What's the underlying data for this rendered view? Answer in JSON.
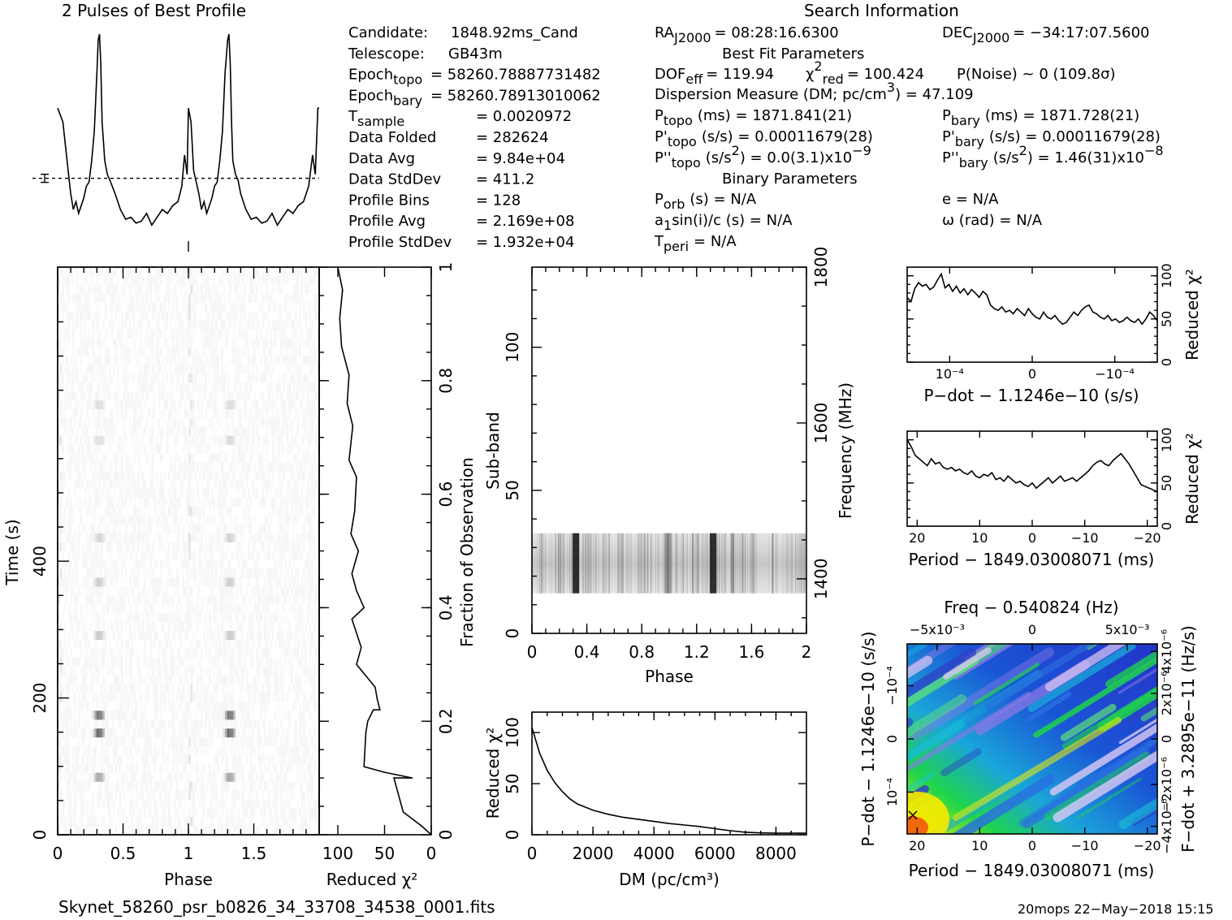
{
  "header": {
    "profile_title": "2 Pulses of Best Profile",
    "search_title": "Search Information",
    "best_fit_title": "Best Fit Parameters",
    "binary_title": "Binary Parameters"
  },
  "info_left": [
    {
      "label": "Candidate:",
      "sub": "",
      "value": "1848.92ms_Cand"
    },
    {
      "label": "Telescope:",
      "sub": "",
      "value": "GB43m"
    },
    {
      "label": "Epoch",
      "sub": "topo",
      "value": "= 58260.78887731482"
    },
    {
      "label": "Epoch",
      "sub": "bary",
      "value": "= 58260.78913010062"
    },
    {
      "label": "T",
      "sub": "sample",
      "value": "=   0.0020972"
    },
    {
      "label": "Data Folded",
      "sub": "",
      "value": "=   282624"
    },
    {
      "label": "Data Avg",
      "sub": "",
      "value": "=   9.84e+04"
    },
    {
      "label": "Data StdDev",
      "sub": "",
      "value": "=   411.2"
    },
    {
      "label": "Profile Bins",
      "sub": "",
      "value": "=   128"
    },
    {
      "label": "Profile Avg",
      "sub": "",
      "value": "=   2.169e+08"
    },
    {
      "label": "Profile StdDev",
      "sub": "",
      "value": "=   1.932e+04"
    }
  ],
  "search": {
    "ra": {
      "label": "RA",
      "sub": "J2000",
      "value": "= 08:28:16.6300"
    },
    "dec": {
      "label": "DEC",
      "sub": "J2000",
      "value": "= −34:17:07.5600"
    },
    "dof": {
      "label": "DOF",
      "sub": "eff",
      "value": "= 119.94"
    },
    "chi": {
      "label": "χ",
      "sup": "2",
      "sub": "red",
      "value": "= 100.424"
    },
    "pnoise": "P(Noise) ~ 0    (109.8σ)",
    "dm": {
      "label": "Dispersion Measure (DM; pc/cm",
      "sup": "3",
      "value": ") = 47.109"
    },
    "p_topo": {
      "label": "P",
      "sub": "topo",
      "value": "(ms)  =   1871.841(21)"
    },
    "p_bary": {
      "label": "P",
      "sub": "bary",
      "value": "(ms)  =   1871.728(21)"
    },
    "pd_topo": {
      "label": "P'",
      "sub": "topo",
      "value": "(s/s)  =   0.00011679(28)"
    },
    "pd_bary": {
      "label": "P'",
      "sub": "bary",
      "value": "(s/s)  =   0.00011679(28)"
    },
    "pdd_topo": {
      "label": "P''",
      "sub": "topo",
      "value": "(s/s",
      "sup": "2",
      "value2": ") = 0.0(3.1)x10",
      "exp": "−9"
    },
    "pdd_bary": {
      "label": "P''",
      "sub": "bary",
      "value": "(s/s",
      "sup": "2",
      "value2": ")  =   1.46(31)x10",
      "exp": "−8"
    },
    "porb": {
      "label": "P",
      "sub": "orb",
      "value": "(s) = N/A"
    },
    "ecc": "e = N/A",
    "a1": {
      "label": "a",
      "sub": "1",
      "value": "sin(i)/c (s) = N/A"
    },
    "omega": "ω (rad) = N/A",
    "tperi": {
      "label": "T",
      "sub": "peri",
      "value": "= N/A"
    }
  },
  "footer": {
    "filename": "Skynet_58260_psr_b0826_34_33708_34538_0001.fits",
    "stamp": "20mops 22−May−2018 15:15"
  },
  "chart_data": [
    {
      "name": "profile",
      "type": "line",
      "title": "2 Pulses of Best Profile",
      "xlim": [
        0,
        2
      ],
      "x": [
        0.0,
        0.04,
        0.08,
        0.1,
        0.12,
        0.14,
        0.16,
        0.18,
        0.2,
        0.22,
        0.24,
        0.26,
        0.28,
        0.3,
        0.31,
        0.32,
        0.33,
        0.34,
        0.36,
        0.38,
        0.4,
        0.44,
        0.48,
        0.52,
        0.56,
        0.6,
        0.64,
        0.68,
        0.72,
        0.76,
        0.8,
        0.84,
        0.88,
        0.92,
        0.95,
        0.97,
        0.99,
        1.0,
        1.02,
        1.04,
        1.08,
        1.1,
        1.12,
        1.14,
        1.16,
        1.18,
        1.2,
        1.22,
        1.24,
        1.26,
        1.28,
        1.3,
        1.31,
        1.32,
        1.33,
        1.34,
        1.36,
        1.38,
        1.4,
        1.44,
        1.48,
        1.52,
        1.56,
        1.6,
        1.64,
        1.68,
        1.72,
        1.76,
        1.8,
        1.84,
        1.88,
        1.92,
        1.95,
        1.97,
        1.99,
        2.0
      ],
      "y": [
        0.62,
        0.55,
        0.3,
        0.18,
        0.1,
        0.14,
        0.08,
        0.12,
        0.16,
        0.22,
        0.24,
        0.35,
        0.5,
        0.8,
        0.97,
        1.0,
        0.85,
        0.55,
        0.35,
        0.28,
        0.25,
        0.18,
        0.1,
        0.05,
        0.06,
        0.03,
        0.04,
        0.08,
        0.02,
        0.06,
        0.1,
        0.08,
        0.12,
        0.14,
        0.22,
        0.38,
        0.28,
        0.62,
        0.55,
        0.3,
        0.18,
        0.1,
        0.14,
        0.08,
        0.12,
        0.16,
        0.22,
        0.24,
        0.35,
        0.5,
        0.8,
        0.97,
        1.0,
        0.85,
        0.55,
        0.35,
        0.28,
        0.25,
        0.18,
        0.1,
        0.05,
        0.06,
        0.03,
        0.04,
        0.08,
        0.02,
        0.06,
        0.1,
        0.08,
        0.12,
        0.14,
        0.22,
        0.38,
        0.28,
        0.62,
        0.62
      ],
      "mean_level": 0.26
    },
    {
      "name": "time_phase",
      "type": "heatmap",
      "xlabel": "Phase",
      "ylabel": "Time (s)",
      "xlim": [
        0,
        2
      ],
      "ylim": [
        0,
        830
      ],
      "x_ticks": [
        "0",
        "0.5",
        "1",
        "1.5"
      ],
      "y_ticks": [
        "0",
        "200",
        "400"
      ]
    },
    {
      "name": "chi_vs_time",
      "type": "line",
      "xlabel": "Reduced χ²",
      "ylabel": "Fraction of Observation",
      "xlim": [
        120,
        0
      ],
      "ylim": [
        0,
        1
      ],
      "x_ticks": [
        "100",
        "50",
        "0"
      ],
      "y_ticks": [
        "0",
        "0.2",
        "0.4",
        "0.6",
        "0.8",
        "1"
      ],
      "chi": [
        0,
        10,
        30,
        40,
        20,
        50,
        72,
        70,
        68,
        62,
        55,
        58,
        60,
        80,
        75,
        85,
        72,
        80,
        85,
        78,
        86,
        82,
        80,
        88,
        84,
        90,
        88,
        96,
        98,
        95,
        100
      ],
      "frac": [
        0,
        0.015,
        0.04,
        0.1,
        0.1,
        0.11,
        0.12,
        0.18,
        0.2,
        0.22,
        0.22,
        0.24,
        0.26,
        0.3,
        0.33,
        0.38,
        0.4,
        0.43,
        0.46,
        0.5,
        0.53,
        0.57,
        0.63,
        0.66,
        0.72,
        0.76,
        0.81,
        0.86,
        0.91,
        0.96,
        1.0
      ]
    },
    {
      "name": "subband_phase",
      "type": "heatmap",
      "xlabel": "Phase",
      "ylabel": "Sub-band",
      "ylabel_right": "Frequency (MHz)",
      "xlim": [
        0,
        2
      ],
      "ylim": [
        0,
        128
      ],
      "active_subbands": [
        14,
        35
      ],
      "x_ticks": [
        "0",
        "0.4",
        "0.8",
        "1.2",
        "1.6",
        "2"
      ],
      "y_ticks": [
        "0",
        "50",
        "100"
      ],
      "freq_ticks": [
        "1400",
        "1600",
        "1800"
      ]
    },
    {
      "name": "chi_vs_dm",
      "type": "line",
      "xlabel": "DM (pc/cm³)",
      "ylabel": "Reduced χ²",
      "xlim": [
        0,
        9000
      ],
      "ylim": [
        0,
        120
      ],
      "x_ticks": [
        "0",
        "2000",
        "4000",
        "6000",
        "8000"
      ],
      "y_ticks": [
        "0",
        "50",
        "100"
      ],
      "x": [
        0,
        250,
        500,
        750,
        1000,
        1250,
        1500,
        2000,
        2500,
        3000,
        3500,
        4000,
        4500,
        5000,
        5500,
        6000,
        6500,
        7000,
        7500,
        8000,
        9000
      ],
      "y": [
        105,
        80,
        63,
        51,
        42,
        35,
        30,
        24,
        20,
        17,
        15,
        13,
        11,
        9.5,
        8,
        6,
        4,
        2.5,
        1.8,
        1.5,
        1.5
      ]
    },
    {
      "name": "chi_vs_pdot",
      "type": "line",
      "xlabel": "P−dot − 1.1246e−10 (s/s)",
      "ylabel": "Reduced χ²",
      "ylim": [
        0,
        110
      ],
      "x_ticks": [
        "10⁻⁴",
        "0",
        "−10⁻⁴"
      ],
      "y_ticks": [
        "0",
        "50",
        "100"
      ],
      "y": [
        75,
        70,
        85,
        92,
        88,
        90,
        84,
        87,
        95,
        102,
        86,
        90,
        82,
        88,
        80,
        85,
        78,
        84,
        80,
        75,
        82,
        78,
        66,
        62,
        60,
        64,
        58,
        60,
        56,
        62,
        58,
        54,
        62,
        56,
        52,
        50,
        58,
        52,
        50,
        54,
        48,
        44,
        46,
        52,
        58,
        54,
        60,
        64,
        66,
        58,
        56,
        52,
        50,
        54,
        48,
        50,
        46,
        48,
        52,
        48,
        46,
        50,
        44,
        50,
        58,
        54,
        48
      ]
    },
    {
      "name": "chi_vs_period",
      "type": "line",
      "xlabel": "Period − 1849.03008071 (ms)",
      "ylabel": "Reduced χ²",
      "ylim": [
        0,
        110
      ],
      "x_ticks": [
        "20",
        "10",
        "0",
        "−10",
        "−20"
      ],
      "y_ticks": [
        "0",
        "50",
        "100"
      ],
      "y": [
        100,
        92,
        82,
        78,
        74,
        70,
        78,
        72,
        74,
        68,
        66,
        68,
        64,
        66,
        62,
        60,
        64,
        58,
        56,
        60,
        58,
        62,
        54,
        56,
        52,
        58,
        54,
        50,
        52,
        48,
        46,
        50,
        44,
        48,
        52,
        56,
        50,
        54,
        58,
        52,
        54,
        56,
        52,
        56,
        60,
        64,
        70,
        74,
        76,
        72,
        70,
        76,
        80,
        84,
        78,
        72,
        64,
        56,
        48,
        46,
        44,
        42,
        40
      ]
    },
    {
      "name": "p_pdot_grid",
      "type": "heatmap",
      "title": "Freq − 0.540824 (Hz)",
      "xlabel": "Period − 1849.03008071 (ms)",
      "ylabel": "P−dot − 1.1246e−10 (s/s)",
      "ylabel_right": "F−dot + 3.2895e−11 (Hz/s)",
      "x_ticks": [
        "20",
        "10",
        "0",
        "−10",
        "−20"
      ],
      "top_ticks": [
        "−5x10⁻³",
        "0",
        "5x10⁻³"
      ],
      "y_ticks": [
        "10⁻⁴",
        "0",
        "−10⁻⁴"
      ],
      "right_ticks": [
        "−4x10⁻⁶",
        "−2x10⁻⁶",
        "0",
        "2x10⁻⁶",
        "4x10⁻⁶"
      ]
    }
  ]
}
